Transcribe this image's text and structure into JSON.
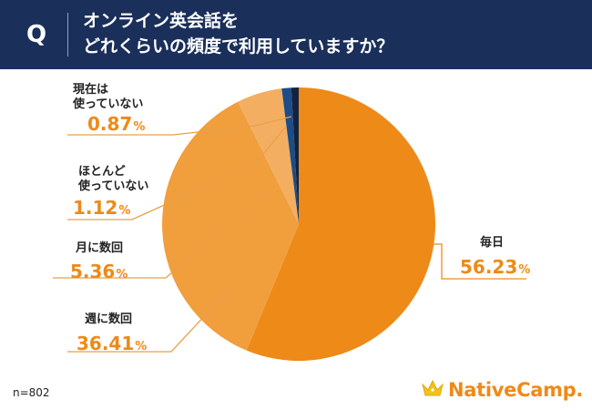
{
  "header": {
    "q_label": "Q",
    "title_line_1": "オンライン英会話を",
    "title_line_2": "どれくらいの頻度で利用していますか？"
  },
  "chart_data": {
    "type": "pie",
    "title": "オンライン英会話をどれくらいの頻度で利用していますか？",
    "unit": "%",
    "slices": [
      {
        "label": "毎日",
        "label_lines": [
          "毎日"
        ],
        "value": 56.23,
        "color": "#ee8a18"
      },
      {
        "label": "週に数回",
        "label_lines": [
          "週に数回"
        ],
        "value": 36.41,
        "color": "#f19e3d"
      },
      {
        "label": "月に数回",
        "label_lines": [
          "月に数回"
        ],
        "value": 5.36,
        "color": "#f3ae62"
      },
      {
        "label": "ほとんど使っていない",
        "label_lines": [
          "ほとんど",
          "使っていない"
        ],
        "value": 1.12,
        "color": "#1c4d86"
      },
      {
        "label": "現在は使っていない",
        "label_lines": [
          "現在は",
          "使っていない"
        ],
        "value": 0.87,
        "color": "#13233f"
      }
    ],
    "pct_labels": [
      "56.23",
      "36.41",
      "5.36",
      "1.12",
      "0.87"
    ],
    "sample_size": "n=802"
  },
  "logo": {
    "text": "NativeCamp."
  }
}
